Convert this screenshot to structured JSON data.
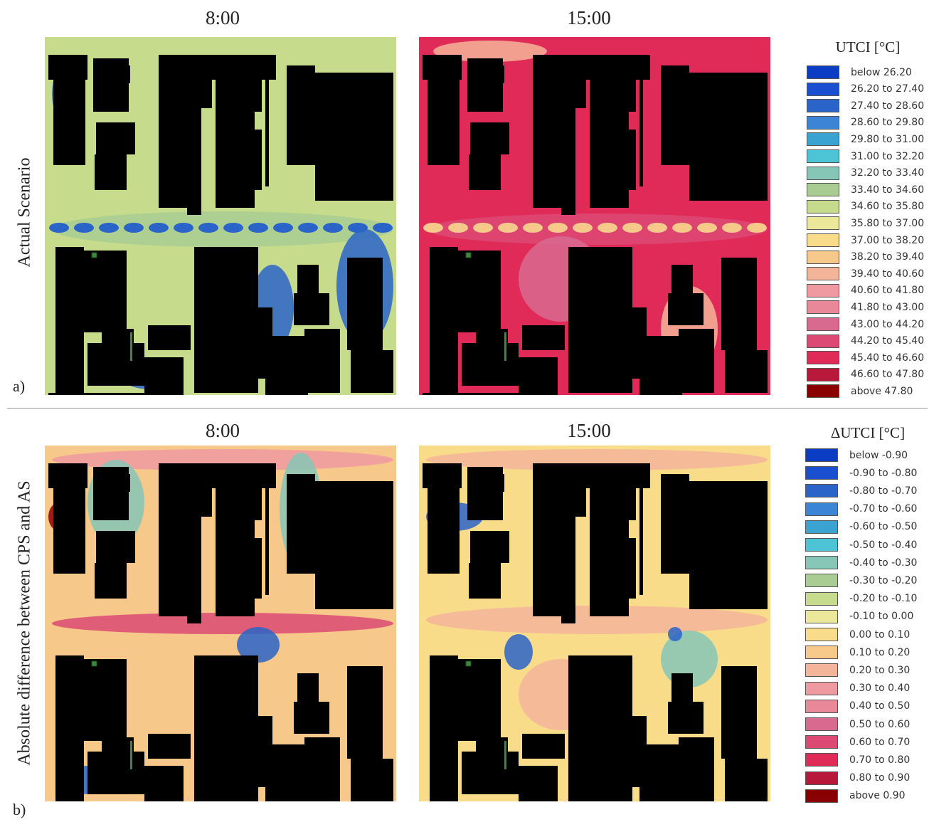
{
  "panels": {
    "top": {
      "times": [
        "8:00",
        "15:00"
      ],
      "row_label": "Actual Scenario",
      "letter": "a)",
      "legend": {
        "title": "UTCI [°C]",
        "items": [
          {
            "label": "below 26.20",
            "color": "#0a3cc4"
          },
          {
            "label": "26.20 to 27.40",
            "color": "#1a4fd0"
          },
          {
            "label": "27.40 to 28.60",
            "color": "#2a64c8"
          },
          {
            "label": "28.60 to 29.80",
            "color": "#3c84d6"
          },
          {
            "label": "29.80 to 31.00",
            "color": "#3aa3d2"
          },
          {
            "label": "31.00 to 32.20",
            "color": "#4cc4d6"
          },
          {
            "label": "32.20 to 33.40",
            "color": "#86c6b6"
          },
          {
            "label": "33.40 to 34.60",
            "color": "#a8cc92"
          },
          {
            "label": "34.60 to 35.80",
            "color": "#c6dc8c"
          },
          {
            "label": "35.80 to 37.00",
            "color": "#ece89a"
          },
          {
            "label": "37.00 to 38.20",
            "color": "#f8dc8a"
          },
          {
            "label": "38.20 to 39.40",
            "color": "#f6c88a"
          },
          {
            "label": "39.40 to 40.60",
            "color": "#f4b49a"
          },
          {
            "label": "40.60 to 41.80",
            "color": "#ee9aa0"
          },
          {
            "label": "41.80 to 43.00",
            "color": "#e88898"
          },
          {
            "label": "43.00 to 44.20",
            "color": "#d86a90"
          },
          {
            "label": "44.20 to 45.40",
            "color": "#dc4a74"
          },
          {
            "label": "45.40 to 46.60",
            "color": "#e02a58"
          },
          {
            "label": "46.60 to 47.80",
            "color": "#b8183a"
          },
          {
            "label": "above 47.80",
            "color": "#8a0000"
          }
        ]
      }
    },
    "bottom": {
      "times": [
        "8:00",
        "15:00"
      ],
      "row_label": "Absolute difference between CPS and AS",
      "letter": "b)",
      "legend": {
        "title": "ΔUTCI [°C]",
        "items": [
          {
            "label": "below -0.90",
            "color": "#0a3cc4"
          },
          {
            "label": "-0.90 to -0.80",
            "color": "#1a4fd0"
          },
          {
            "label": "-0.80 to -0.70",
            "color": "#2a64c8"
          },
          {
            "label": "-0.70 to -0.60",
            "color": "#3c84d6"
          },
          {
            "label": "-0.60 to -0.50",
            "color": "#3aa3d2"
          },
          {
            "label": "-0.50 to -0.40",
            "color": "#4cc4d6"
          },
          {
            "label": "-0.40 to -0.30",
            "color": "#86c6b6"
          },
          {
            "label": "-0.30 to -0.20",
            "color": "#a8cc92"
          },
          {
            "label": "-0.20 to -0.10",
            "color": "#c6dc8c"
          },
          {
            "label": "-0.10 to 0.00",
            "color": "#ece89a"
          },
          {
            "label": "0.00 to 0.10",
            "color": "#f8dc8a"
          },
          {
            "label": "0.10 to 0.20",
            "color": "#f6c88a"
          },
          {
            "label": "0.20 to 0.30",
            "color": "#f4b49a"
          },
          {
            "label": "0.30 to 0.40",
            "color": "#ee9aa0"
          },
          {
            "label": "0.40 to 0.50",
            "color": "#e88898"
          },
          {
            "label": "0.50 to 0.60",
            "color": "#d86a90"
          },
          {
            "label": "0.60 to 0.70",
            "color": "#dc4a74"
          },
          {
            "label": "0.70 to 0.80",
            "color": "#e02a58"
          },
          {
            "label": "0.80 to 0.90",
            "color": "#b8183a"
          },
          {
            "label": "above 0.90",
            "color": "#8a0000"
          }
        ]
      }
    }
  },
  "colors": {
    "building": "#000000",
    "map_a_8": "#c6dc8c",
    "map_a_15": "#e02a58",
    "map_b_8": "#f6c88a",
    "map_b_15": "#f8dc8a",
    "cold": "#2a64c8",
    "warm": "#f8dc8a"
  }
}
